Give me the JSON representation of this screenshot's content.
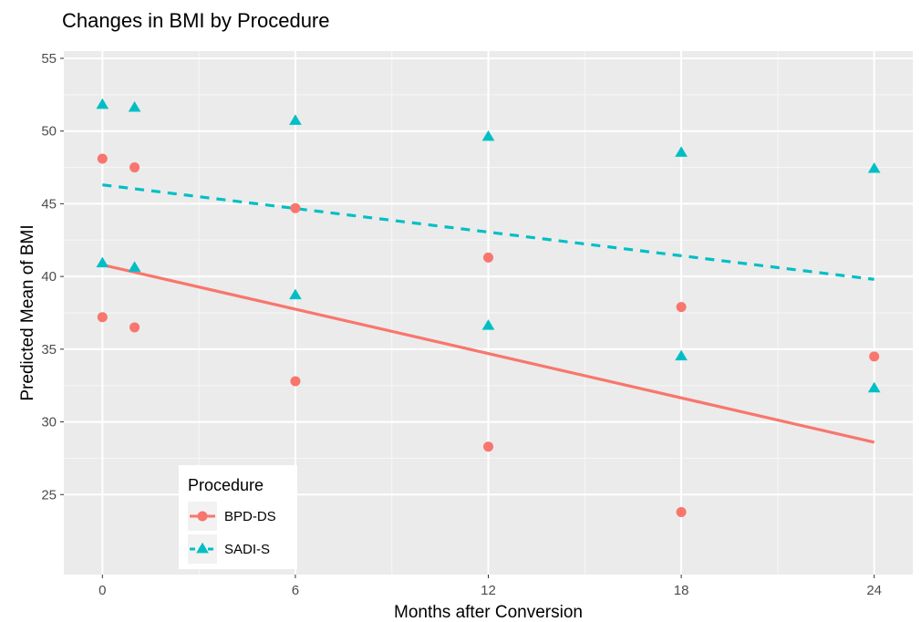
{
  "chart_data": {
    "type": "scatter",
    "title": "Changes in BMI by Procedure",
    "xlabel": "Months after Conversion",
    "ylabel": "Predicted Mean of BMI",
    "x_ticks": [
      0,
      6,
      12,
      18,
      24
    ],
    "y_ticks": [
      25,
      30,
      35,
      40,
      45,
      50,
      55
    ],
    "xlim": [
      -1.2,
      25.2
    ],
    "ylim": [
      19.5,
      55.5
    ],
    "grid": true,
    "legend": {
      "title": "Procedure",
      "placement": "bottom-left",
      "entries": [
        "BPD-DS",
        "SADI-S"
      ]
    },
    "series": [
      {
        "name": "BPD-DS",
        "color": "#F8766D",
        "marker": "circle",
        "points": [
          {
            "x": 0,
            "y": 48.1
          },
          {
            "x": 0,
            "y": 37.2
          },
          {
            "x": 1,
            "y": 47.5
          },
          {
            "x": 1,
            "y": 36.5
          },
          {
            "x": 6,
            "y": 44.7
          },
          {
            "x": 6,
            "y": 32.8
          },
          {
            "x": 12,
            "y": 41.3
          },
          {
            "x": 12,
            "y": 28.3
          },
          {
            "x": 18,
            "y": 37.9
          },
          {
            "x": 18,
            "y": 23.8
          },
          {
            "x": 24,
            "y": 34.5
          }
        ],
        "trend": {
          "style": "solid",
          "x": [
            0,
            24
          ],
          "y": [
            40.8,
            28.6
          ]
        }
      },
      {
        "name": "SADI-S",
        "color": "#00BFC4",
        "marker": "triangle",
        "points": [
          {
            "x": 0,
            "y": 51.8
          },
          {
            "x": 0,
            "y": 40.9
          },
          {
            "x": 1,
            "y": 51.6
          },
          {
            "x": 1,
            "y": 40.6
          },
          {
            "x": 6,
            "y": 50.7
          },
          {
            "x": 6,
            "y": 38.7
          },
          {
            "x": 12,
            "y": 49.6
          },
          {
            "x": 12,
            "y": 36.6
          },
          {
            "x": 18,
            "y": 48.5
          },
          {
            "x": 18,
            "y": 34.5
          },
          {
            "x": 24,
            "y": 47.4
          },
          {
            "x": 24,
            "y": 32.3
          }
        ],
        "trend": {
          "style": "dashed",
          "x": [
            0,
            24
          ],
          "y": [
            46.3,
            39.8
          ]
        }
      }
    ]
  }
}
